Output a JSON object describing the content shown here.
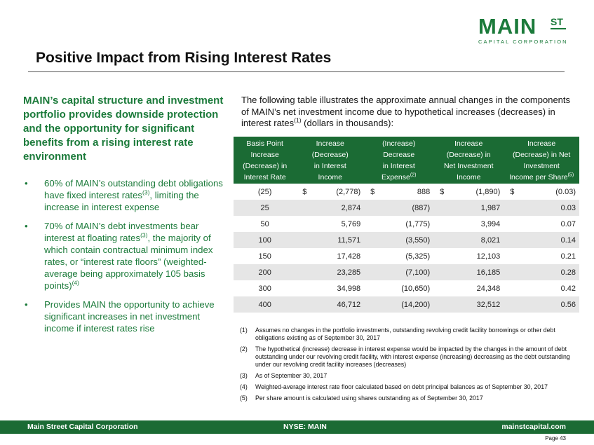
{
  "logo": {
    "main": "MAIN",
    "st": "ST",
    "sub": "CAPITAL CORPORATION"
  },
  "title": "Positive Impact from Rising Interest Rates",
  "lead": "MAIN’s capital structure and investment portfolio provides downside protection and the opportunity for significant benefits from a rising interest rate environment",
  "bullets": [
    {
      "pre": "60% of MAIN’s outstanding debt obligations have fixed interest rates",
      "sup": "(3)",
      "post": ", limiting the increase in interest expense"
    },
    {
      "pre": "70% of MAIN’s debt investments bear interest at floating rates",
      "sup": "(3)",
      "post": ", the majority of which contain contractual minimum index rates, or “interest rate floors” (weighted-average being approximately 105 basis points)",
      "sup2": "(4)"
    },
    {
      "pre": "Provides MAIN the opportunity to achieve significant increases in net investment income if interest rates rise",
      "sup": "",
      "post": ""
    }
  ],
  "intro": {
    "pre": "The following table illustrates the approximate annual changes in the components of MAIN’s net investment income due to hypothetical increases (decreases) in interest rates",
    "sup": "(1)",
    "post": " (dollars in thousands):"
  },
  "table": {
    "headers": [
      {
        "lines": [
          "Basis Point",
          "Increase",
          "(Decrease) in",
          "Interest Rate"
        ],
        "sup": ""
      },
      {
        "lines": [
          "Increase",
          "(Decrease)",
          "in Interest",
          "Income"
        ],
        "sup": ""
      },
      {
        "lines": [
          "(Increase)",
          "Decrease",
          "in Interest",
          "Expense"
        ],
        "sup": "(2)"
      },
      {
        "lines": [
          "Increase",
          "(Decrease) in",
          "Net Investment",
          "Income"
        ],
        "sup": ""
      },
      {
        "lines": [
          "Increase",
          "(Decrease) in Net",
          "Investment",
          "Income per Share"
        ],
        "sup": "(5)"
      }
    ],
    "currency": "$",
    "rows": [
      {
        "bp": "(25)",
        "income": "(2,778)",
        "expense": "888",
        "nii": "(1,890)",
        "per_share": "(0.03)"
      },
      {
        "bp": "25",
        "income": "2,874",
        "expense": "(887)",
        "nii": "1,987",
        "per_share": "0.03"
      },
      {
        "bp": "50",
        "income": "5,769",
        "expense": "(1,775)",
        "nii": "3,994",
        "per_share": "0.07"
      },
      {
        "bp": "100",
        "income": "11,571",
        "expense": "(3,550)",
        "nii": "8,021",
        "per_share": "0.14"
      },
      {
        "bp": "150",
        "income": "17,428",
        "expense": "(5,325)",
        "nii": "12,103",
        "per_share": "0.21"
      },
      {
        "bp": "200",
        "income": "23,285",
        "expense": "(7,100)",
        "nii": "16,185",
        "per_share": "0.28"
      },
      {
        "bp": "300",
        "income": "34,998",
        "expense": "(10,650)",
        "nii": "24,348",
        "per_share": "0.42"
      },
      {
        "bp": "400",
        "income": "46,712",
        "expense": "(14,200)",
        "nii": "32,512",
        "per_share": "0.56"
      }
    ]
  },
  "footnotes": [
    {
      "num": "(1)",
      "text": "Assumes no changes in the portfolio investments, outstanding revolving credit facility borrowings or other debt obligations existing as of September 30, 2017"
    },
    {
      "num": "(2)",
      "text": "The hypothetical (increase) decrease in interest expense would be impacted by the changes in the amount of debt outstanding under our revolving credit facility, with interest expense (increasing) decreasing as the debt outstanding under our revolving credit facility increases (decreases)"
    },
    {
      "num": "(3)",
      "text": "As of September 30, 2017"
    },
    {
      "num": "(4)",
      "text": "Weighted-average interest rate floor calculated based on debt principal balances as of September 30, 2017"
    },
    {
      "num": "(5)",
      "text": "Per share amount is calculated using shares outstanding as of September 30, 2017"
    }
  ],
  "footer": {
    "left": "Main Street Capital Corporation",
    "center": "NYSE: MAIN",
    "right": "mainstcapital.com"
  },
  "page": "Page 43"
}
